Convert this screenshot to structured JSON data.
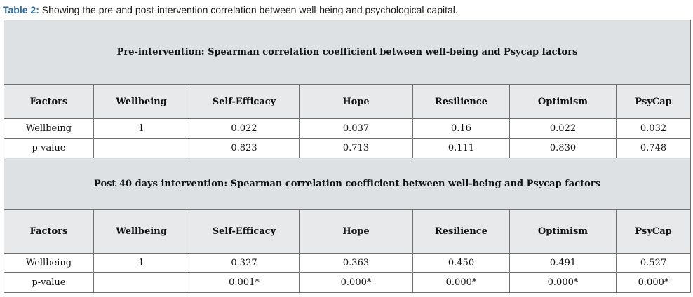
{
  "caption": {
    "label": "Table 2:",
    "text": "Showing the pre-and post-intervention correlation between well-being and psychological capital."
  },
  "columns": [
    "Factors",
    "Wellbeing",
    "Self-Efficacy",
    "Hope",
    "Resilience",
    "Optimism",
    "PsyCap"
  ],
  "pre": {
    "title": "Pre-intervention: Spearman correlation coefficient between well-being and Psycap factors",
    "wellbeing_row": [
      "Wellbeing",
      "1",
      "0.022",
      "0.037",
      "0.16",
      "0.022",
      "0.032"
    ],
    "pvalue_row": [
      "p-value",
      "",
      "0.823",
      "0.713",
      "0.111",
      "0.830",
      "0.748"
    ]
  },
  "post": {
    "title": "Post 40 days intervention: Spearman correlation coefficient between well-being and Psycap factors",
    "wellbeing_row": [
      "Wellbeing",
      "1",
      "0.327",
      "0.363",
      "0.450",
      "0.491",
      "0.527"
    ],
    "pvalue_row": [
      "p-value",
      "",
      "0.001*",
      "0.000*",
      "0.000*",
      "0.000*",
      "0.000*"
    ]
  }
}
